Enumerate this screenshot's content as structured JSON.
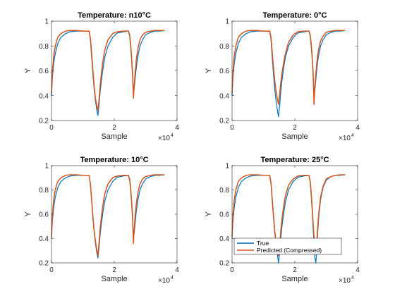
{
  "chart_data": [
    {
      "type": "line",
      "title": "Temperature: n10°C",
      "xlabel": "Sample",
      "ylabel": "Y",
      "x_exponent_label": "×10",
      "x_exponent_power": "4",
      "xlim": [
        0,
        40000
      ],
      "ylim": [
        0.2,
        1
      ],
      "xticks": [
        "0",
        "2",
        "4"
      ],
      "yticks": [
        "0.2",
        "0.4",
        "0.6",
        "0.8",
        "1"
      ],
      "x_scale": 10000,
      "grid": false,
      "legend": null,
      "x": [
        0,
        300,
        700,
        1200,
        2000,
        3000,
        4500,
        6000,
        8000,
        10000,
        12000,
        12400,
        12700,
        13000,
        13300,
        13600,
        14000,
        14400,
        14800,
        15200,
        15500,
        15900,
        16400,
        17000,
        18000,
        19500,
        21000,
        23000,
        24500,
        24900,
        25200,
        25500,
        25800,
        26100,
        26400,
        26700,
        27000,
        27300,
        27700,
        28200,
        29000,
        30000,
        31500,
        33000,
        34500,
        36000
      ],
      "series": [
        {
          "name": "True",
          "color": "#0072BD",
          "values": [
            0.4,
            0.55,
            0.66,
            0.74,
            0.82,
            0.87,
            0.9,
            0.915,
            0.92,
            0.92,
            0.92,
            0.85,
            0.74,
            0.64,
            0.54,
            0.45,
            0.36,
            0.29,
            0.24,
            0.34,
            0.43,
            0.52,
            0.62,
            0.71,
            0.8,
            0.87,
            0.905,
            0.915,
            0.92,
            0.88,
            0.8,
            0.7,
            0.57,
            0.43,
            0.47,
            0.55,
            0.62,
            0.68,
            0.74,
            0.8,
            0.85,
            0.89,
            0.91,
            0.92,
            0.92,
            0.925
          ]
        },
        {
          "name": "Predicted (Compressed)",
          "color": "#D95319",
          "values": [
            0.42,
            0.6,
            0.72,
            0.8,
            0.87,
            0.9,
            0.92,
            0.925,
            0.925,
            0.92,
            0.92,
            0.86,
            0.77,
            0.67,
            0.57,
            0.47,
            0.38,
            0.32,
            0.28,
            0.38,
            0.48,
            0.58,
            0.68,
            0.77,
            0.85,
            0.9,
            0.915,
            0.92,
            0.92,
            0.89,
            0.82,
            0.72,
            0.6,
            0.38,
            0.5,
            0.6,
            0.68,
            0.74,
            0.8,
            0.85,
            0.89,
            0.91,
            0.92,
            0.925,
            0.925,
            0.925
          ]
        }
      ]
    },
    {
      "type": "line",
      "title": "Temperature: 0°C",
      "xlabel": "Sample",
      "ylabel": "Y",
      "x_exponent_label": "×10",
      "x_exponent_power": "4",
      "xlim": [
        0,
        40000
      ],
      "ylim": [
        0.2,
        1
      ],
      "xticks": [
        "0",
        "2",
        "4"
      ],
      "yticks": [
        "0.2",
        "0.4",
        "0.6",
        "0.8",
        "1"
      ],
      "x_scale": 10000,
      "grid": false,
      "legend": null,
      "x": [
        0,
        300,
        700,
        1200,
        2000,
        3000,
        4500,
        6000,
        8000,
        10000,
        12000,
        12400,
        12700,
        13000,
        13300,
        13600,
        14000,
        14400,
        14800,
        15200,
        15500,
        15900,
        16400,
        17000,
        18000,
        19500,
        21000,
        23000,
        24500,
        24900,
        25200,
        25500,
        25800,
        26100,
        26400,
        26700,
        27000,
        27300,
        27700,
        28200,
        29000,
        30000,
        31500,
        33000,
        34500,
        36000
      ],
      "series": [
        {
          "name": "True",
          "color": "#0072BD",
          "values": [
            0.4,
            0.55,
            0.66,
            0.74,
            0.82,
            0.87,
            0.9,
            0.915,
            0.92,
            0.92,
            0.92,
            0.85,
            0.74,
            0.64,
            0.54,
            0.45,
            0.36,
            0.29,
            0.23,
            0.33,
            0.43,
            0.52,
            0.62,
            0.71,
            0.8,
            0.87,
            0.905,
            0.915,
            0.92,
            0.88,
            0.8,
            0.7,
            0.57,
            0.43,
            0.45,
            0.53,
            0.61,
            0.68,
            0.74,
            0.8,
            0.85,
            0.89,
            0.91,
            0.92,
            0.92,
            0.925
          ]
        },
        {
          "name": "Predicted (Compressed)",
          "color": "#D95319",
          "values": [
            0.42,
            0.6,
            0.72,
            0.8,
            0.87,
            0.9,
            0.92,
            0.925,
            0.925,
            0.92,
            0.92,
            0.87,
            0.78,
            0.69,
            0.6,
            0.52,
            0.44,
            0.38,
            0.33,
            0.42,
            0.5,
            0.58,
            0.66,
            0.74,
            0.83,
            0.89,
            0.915,
            0.92,
            0.92,
            0.89,
            0.82,
            0.72,
            0.6,
            0.33,
            0.48,
            0.58,
            0.66,
            0.73,
            0.79,
            0.84,
            0.88,
            0.91,
            0.92,
            0.925,
            0.925,
            0.925
          ]
        }
      ]
    },
    {
      "type": "line",
      "title": "Temperature: 10°C",
      "xlabel": "Sample",
      "ylabel": "Y",
      "x_exponent_label": "×10",
      "x_exponent_power": "4",
      "xlim": [
        0,
        40000
      ],
      "ylim": [
        0.2,
        1
      ],
      "xticks": [
        "0",
        "2",
        "4"
      ],
      "yticks": [
        "0.2",
        "0.4",
        "0.6",
        "0.8",
        "1"
      ],
      "x_scale": 10000,
      "grid": false,
      "legend": null,
      "x": [
        0,
        300,
        700,
        1200,
        2000,
        3000,
        4500,
        6000,
        8000,
        10000,
        12000,
        12400,
        12700,
        13000,
        13300,
        13600,
        14000,
        14400,
        14800,
        15200,
        15500,
        15900,
        16400,
        17000,
        18000,
        19500,
        21000,
        23000,
        24500,
        24900,
        25200,
        25500,
        25800,
        26100,
        26400,
        26700,
        27000,
        27300,
        27700,
        28200,
        29000,
        30000,
        31500,
        33000,
        34500,
        36000
      ],
      "series": [
        {
          "name": "True",
          "color": "#0072BD",
          "values": [
            0.4,
            0.55,
            0.66,
            0.74,
            0.82,
            0.87,
            0.9,
            0.915,
            0.92,
            0.92,
            0.92,
            0.85,
            0.74,
            0.64,
            0.54,
            0.45,
            0.36,
            0.29,
            0.24,
            0.34,
            0.43,
            0.52,
            0.62,
            0.71,
            0.8,
            0.87,
            0.905,
            0.915,
            0.92,
            0.88,
            0.8,
            0.7,
            0.57,
            0.4,
            0.46,
            0.54,
            0.62,
            0.68,
            0.74,
            0.8,
            0.85,
            0.89,
            0.91,
            0.92,
            0.92,
            0.925
          ]
        },
        {
          "name": "Predicted (Compressed)",
          "color": "#D95319",
          "values": [
            0.42,
            0.6,
            0.72,
            0.8,
            0.87,
            0.9,
            0.92,
            0.925,
            0.925,
            0.92,
            0.92,
            0.85,
            0.75,
            0.65,
            0.55,
            0.46,
            0.38,
            0.31,
            0.26,
            0.38,
            0.48,
            0.58,
            0.68,
            0.77,
            0.85,
            0.9,
            0.915,
            0.92,
            0.92,
            0.89,
            0.82,
            0.72,
            0.6,
            0.36,
            0.5,
            0.6,
            0.68,
            0.74,
            0.8,
            0.85,
            0.89,
            0.91,
            0.92,
            0.925,
            0.925,
            0.925
          ]
        }
      ]
    },
    {
      "type": "line",
      "title": "Temperature: 25°C",
      "xlabel": "Sample",
      "ylabel": "Y",
      "x_exponent_label": "×10",
      "x_exponent_power": "4",
      "xlim": [
        0,
        40000
      ],
      "ylim": [
        0.2,
        1
      ],
      "xticks": [
        "0",
        "2",
        "4"
      ],
      "yticks": [
        "0.2",
        "0.4",
        "0.6",
        "0.8",
        "1"
      ],
      "x_scale": 10000,
      "grid": false,
      "legend": {
        "location": "bottom-left",
        "entries": [
          "True",
          "Predicted (Compressed)"
        ]
      },
      "x": [
        0,
        300,
        700,
        1200,
        2000,
        3000,
        4500,
        6000,
        8000,
        10000,
        12000,
        12400,
        12700,
        13000,
        13300,
        13600,
        14000,
        14400,
        14800,
        15200,
        15500,
        15900,
        16400,
        17000,
        18000,
        19500,
        21000,
        23000,
        24500,
        24900,
        25200,
        25500,
        25800,
        26100,
        26400,
        26700,
        27000,
        27300,
        27700,
        28200,
        29000,
        30000,
        31500,
        33000,
        34500,
        36000
      ],
      "series": [
        {
          "name": "True",
          "color": "#0072BD",
          "values": [
            0.4,
            0.55,
            0.66,
            0.74,
            0.82,
            0.87,
            0.9,
            0.915,
            0.92,
            0.92,
            0.92,
            0.85,
            0.74,
            0.64,
            0.54,
            0.45,
            0.36,
            0.28,
            0.2,
            0.3,
            0.4,
            0.5,
            0.6,
            0.7,
            0.8,
            0.87,
            0.905,
            0.915,
            0.92,
            0.86,
            0.76,
            0.64,
            0.5,
            0.36,
            0.24,
            0.2,
            0.32,
            0.46,
            0.6,
            0.72,
            0.82,
            0.88,
            0.91,
            0.92,
            0.92,
            0.925
          ]
        },
        {
          "name": "Predicted (Compressed)",
          "color": "#D95319",
          "values": [
            0.42,
            0.6,
            0.72,
            0.8,
            0.87,
            0.9,
            0.92,
            0.925,
            0.925,
            0.92,
            0.92,
            0.86,
            0.76,
            0.66,
            0.56,
            0.46,
            0.38,
            0.31,
            0.26,
            0.36,
            0.46,
            0.56,
            0.66,
            0.75,
            0.84,
            0.89,
            0.915,
            0.92,
            0.92,
            0.87,
            0.78,
            0.67,
            0.54,
            0.42,
            0.32,
            0.27,
            0.38,
            0.5,
            0.63,
            0.74,
            0.83,
            0.89,
            0.91,
            0.92,
            0.925,
            0.925
          ]
        }
      ]
    }
  ]
}
